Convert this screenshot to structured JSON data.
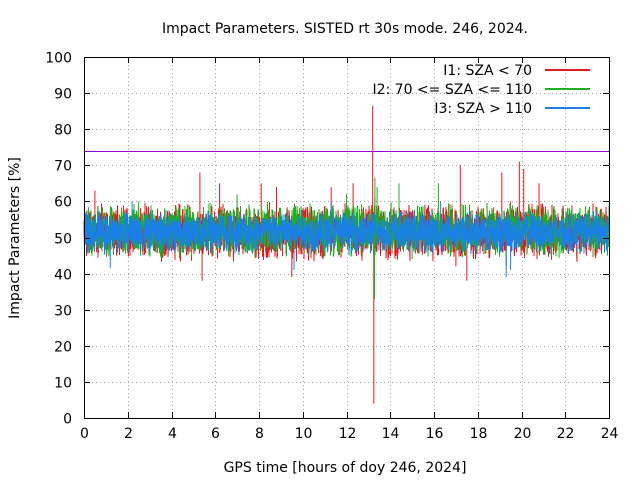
{
  "chart_data": {
    "type": "line",
    "title": "Impact Parameters. SISTED rt 30s mode. 246, 2024.",
    "xlabel": "GPS time [hours of doy 246, 2024]",
    "ylabel": "Impact Parameters [%]",
    "xlim": [
      0,
      24
    ],
    "ylim": [
      0,
      100
    ],
    "xticks": [
      0,
      2,
      4,
      6,
      8,
      10,
      12,
      14,
      16,
      18,
      20,
      22,
      24
    ],
    "yticks": [
      0,
      10,
      20,
      30,
      40,
      50,
      60,
      70,
      80,
      90,
      100
    ],
    "grid": true,
    "legend_position": "top-right",
    "reference_line": {
      "y": 74,
      "color": "#9400d3"
    },
    "series": [
      {
        "name": "I1: SZA < 70",
        "color": "#e41a1c",
        "x_range": [
          0,
          24
        ],
        "typical_range": [
          43,
          60
        ],
        "spikes": [
          {
            "x": 0.5,
            "y": 63
          },
          {
            "x": 5.3,
            "y": 68
          },
          {
            "x": 5.4,
            "y": 38
          },
          {
            "x": 6.2,
            "y": 65
          },
          {
            "x": 8.1,
            "y": 65
          },
          {
            "x": 8.8,
            "y": 64
          },
          {
            "x": 9.5,
            "y": 39
          },
          {
            "x": 11.3,
            "y": 64
          },
          {
            "x": 12.3,
            "y": 65
          },
          {
            "x": 13.2,
            "y": 86.5
          },
          {
            "x": 13.25,
            "y": 4
          },
          {
            "x": 13.3,
            "y": 61
          },
          {
            "x": 17.0,
            "y": 42
          },
          {
            "x": 17.2,
            "y": 70
          },
          {
            "x": 17.5,
            "y": 38
          },
          {
            "x": 19.1,
            "y": 68
          },
          {
            "x": 19.5,
            "y": 60
          },
          {
            "x": 19.9,
            "y": 71
          },
          {
            "x": 20.1,
            "y": 69
          },
          {
            "x": 20.8,
            "y": 65
          }
        ]
      },
      {
        "name": "I2: 70 <= SZA <= 110",
        "color": "#1fb01f",
        "x_range": [
          0,
          24
        ],
        "typical_range": [
          44,
          60
        ],
        "spikes": [
          {
            "x": 2.5,
            "y": 60
          },
          {
            "x": 7.0,
            "y": 62
          },
          {
            "x": 12.0,
            "y": 62
          },
          {
            "x": 13.3,
            "y": 66.5
          },
          {
            "x": 13.28,
            "y": 33
          },
          {
            "x": 13.4,
            "y": 64
          },
          {
            "x": 14.4,
            "y": 65
          },
          {
            "x": 15.0,
            "y": 44
          },
          {
            "x": 16.2,
            "y": 65
          },
          {
            "x": 19.3,
            "y": 42
          }
        ]
      },
      {
        "name": "I3: SZA > 110",
        "color": "#1a80e6",
        "x_range": [
          0,
          24
        ],
        "typical_range": [
          45,
          58
        ],
        "spikes": [
          {
            "x": 1.2,
            "y": 41.5
          },
          {
            "x": 2.2,
            "y": 60
          },
          {
            "x": 9.6,
            "y": 41
          },
          {
            "x": 11.3,
            "y": 60
          },
          {
            "x": 16.3,
            "y": 60
          },
          {
            "x": 19.3,
            "y": 39
          },
          {
            "x": 19.5,
            "y": 41
          }
        ]
      }
    ]
  }
}
